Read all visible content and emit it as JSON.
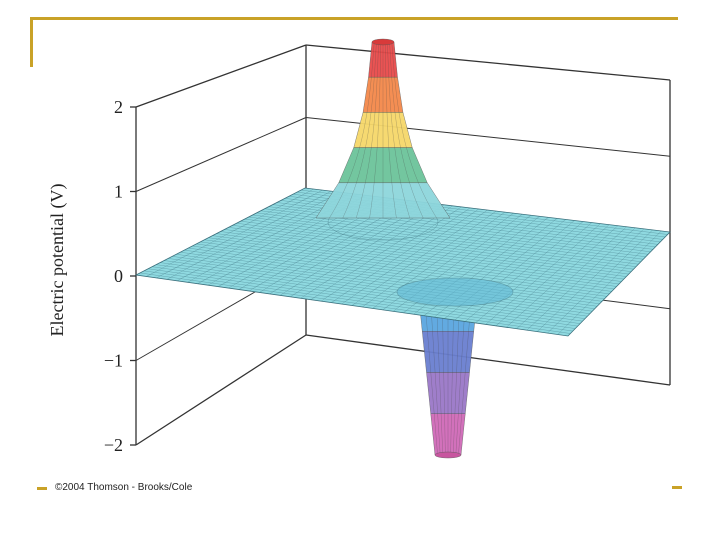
{
  "chart_data": {
    "type": "surface",
    "title": "",
    "ylabel": "Electric potential (V)",
    "zlim": [
      -2,
      2
    ],
    "z_ticks": [
      "2",
      "1",
      "0",
      "−1",
      "−2"
    ],
    "z_tick_values": [
      2,
      1,
      0,
      -1,
      -2
    ],
    "peaks": [
      {
        "sign": "positive",
        "value": 2.8
      },
      {
        "sign": "negative",
        "value": -2.2
      }
    ],
    "band_colors": [
      "#e84a4a",
      "#f4894a",
      "#f6d86a",
      "#6cc49a",
      "#8ed6dc",
      "#5aa6e0",
      "#6a7fd0",
      "#9a78c8",
      "#d06ab8"
    ],
    "surface_color": "#8fd9e0",
    "grid_color": "#3a6f7c",
    "frame_color": "#333333",
    "grid": true
  },
  "credit": "©2004 Thomson - Brooks/Cole"
}
